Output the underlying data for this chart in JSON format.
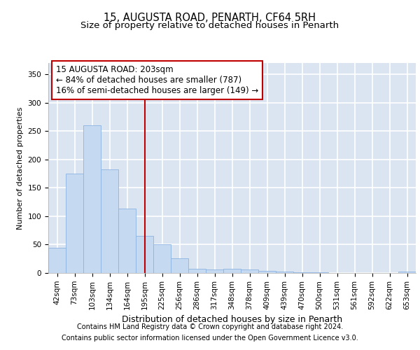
{
  "title1": "15, AUGUSTA ROAD, PENARTH, CF64 5RH",
  "title2": "Size of property relative to detached houses in Penarth",
  "xlabel": "Distribution of detached houses by size in Penarth",
  "ylabel": "Number of detached properties",
  "categories": [
    "42sqm",
    "73sqm",
    "103sqm",
    "134sqm",
    "164sqm",
    "195sqm",
    "225sqm",
    "256sqm",
    "286sqm",
    "317sqm",
    "348sqm",
    "378sqm",
    "409sqm",
    "439sqm",
    "470sqm",
    "500sqm",
    "531sqm",
    "561sqm",
    "592sqm",
    "622sqm",
    "653sqm"
  ],
  "values": [
    44,
    175,
    260,
    183,
    113,
    65,
    50,
    26,
    8,
    6,
    8,
    6,
    4,
    3,
    1,
    1,
    0,
    0,
    0,
    0,
    3
  ],
  "bar_color": "#C5D9F1",
  "bar_edge_color": "#8DB4E2",
  "vline_x": 5,
  "vline_color": "#C00000",
  "annotation_line1": "15 AUGUSTA ROAD: 203sqm",
  "annotation_line2": "← 84% of detached houses are smaller (787)",
  "annotation_line3": "16% of semi-detached houses are larger (149) →",
  "annotation_box_color": "#C00000",
  "ylim": [
    0,
    370
  ],
  "yticks": [
    0,
    50,
    100,
    150,
    200,
    250,
    300,
    350
  ],
  "footer1": "Contains HM Land Registry data © Crown copyright and database right 2024.",
  "footer2": "Contains public sector information licensed under the Open Government Licence v3.0.",
  "background_color": "#DBE5F1",
  "grid_color": "#FFFFFF",
  "title1_fontsize": 10.5,
  "title2_fontsize": 9.5,
  "xlabel_fontsize": 9,
  "ylabel_fontsize": 8,
  "tick_fontsize": 7.5,
  "annotation_fontsize": 8.5,
  "footer_fontsize": 7
}
